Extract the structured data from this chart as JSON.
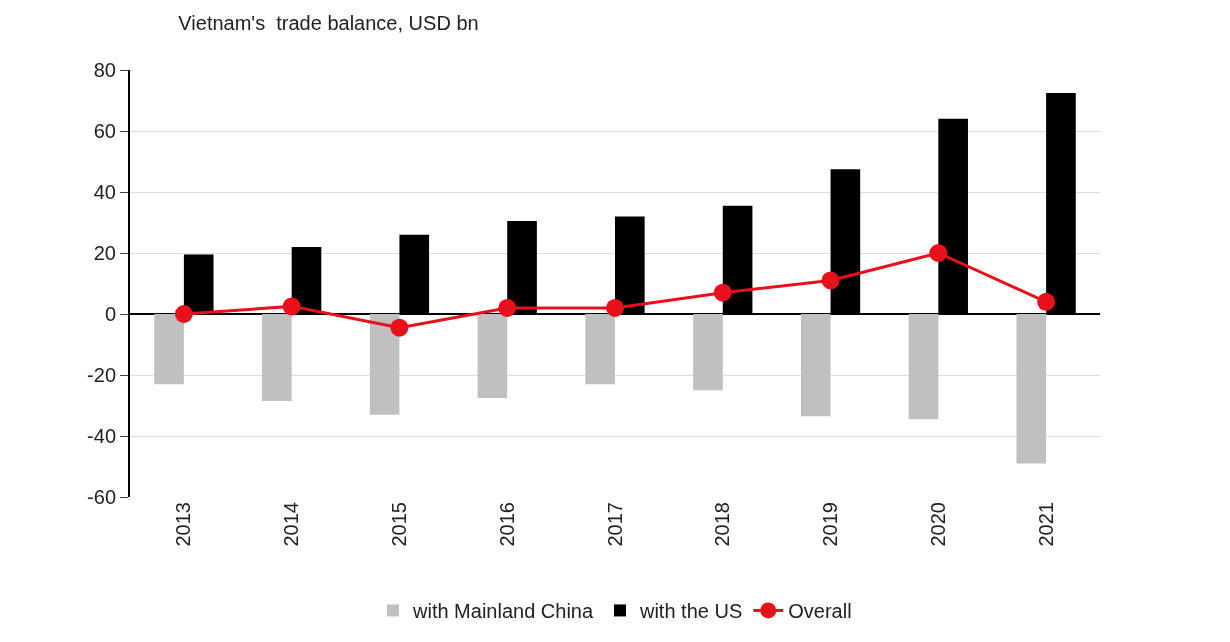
{
  "chart_data": {
    "type": "bar",
    "title": "Vietnam's  trade balance, USD bn",
    "categories": [
      "2013",
      "2014",
      "2015",
      "2016",
      "2017",
      "2018",
      "2019",
      "2020",
      "2021"
    ],
    "series": [
      {
        "name": "with Mainland China",
        "color": "#c0c0c0",
        "values": [
          -23,
          -28.5,
          -33,
          -27.5,
          -23,
          -25,
          -33.5,
          -34.5,
          -49
        ]
      },
      {
        "name": "with the US",
        "color": "#000000",
        "values": [
          19.5,
          22,
          26,
          30.5,
          32,
          35.5,
          47.5,
          64,
          72.5
        ]
      },
      {
        "name": "Overall",
        "type": "line",
        "color": "#e8101a",
        "marker": "circle",
        "values": [
          0,
          2.5,
          -4.5,
          2,
          2,
          7,
          11,
          20,
          4
        ]
      }
    ],
    "ylim": [
      -60,
      80
    ],
    "yticks": [
      -60,
      -40,
      -20,
      0,
      20,
      40,
      60,
      80
    ],
    "grid": "y",
    "legend": "bottom"
  }
}
